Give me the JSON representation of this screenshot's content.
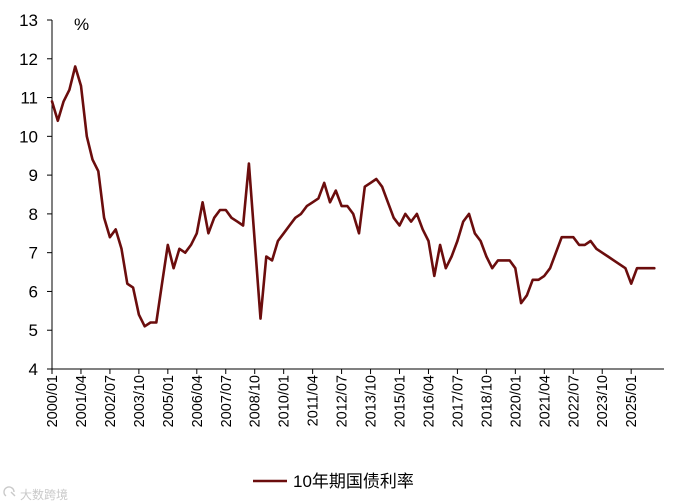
{
  "chart_data": {
    "type": "line",
    "title": "",
    "xlabel": "",
    "ylabel": "%",
    "ylim": [
      4,
      13
    ],
    "yticks": [
      4,
      5,
      6,
      7,
      8,
      9,
      10,
      11,
      12,
      13
    ],
    "xlim": [
      "2000/01",
      "2026/06"
    ],
    "xtick_labels": [
      "2000/01",
      "2001/04",
      "2002/07",
      "2003/10",
      "2005/01",
      "2006/04",
      "2007/07",
      "2008/10",
      "2010/01",
      "2011/04",
      "2012/07",
      "2013/10",
      "2015/01",
      "2016/04",
      "2017/07",
      "2018/10",
      "2020/01",
      "2021/04",
      "2022/07",
      "2023/10",
      "2025/01"
    ],
    "grid": false,
    "legend": "bottom-center",
    "line_color": "#6b0d0d",
    "series": [
      {
        "name": "10年期国债利率",
        "x": [
          "2000/01",
          "2000/04",
          "2000/07",
          "2000/10",
          "2001/01",
          "2001/04",
          "2001/07",
          "2001/10",
          "2002/01",
          "2002/04",
          "2002/07",
          "2002/10",
          "2003/01",
          "2003/04",
          "2003/07",
          "2003/10",
          "2004/01",
          "2004/04",
          "2004/07",
          "2004/10",
          "2005/01",
          "2005/04",
          "2005/07",
          "2005/10",
          "2006/01",
          "2006/04",
          "2006/07",
          "2006/10",
          "2007/01",
          "2007/04",
          "2007/07",
          "2007/10",
          "2008/01",
          "2008/04",
          "2008/07",
          "2008/10",
          "2009/01",
          "2009/04",
          "2009/07",
          "2009/10",
          "2010/01",
          "2010/04",
          "2010/07",
          "2010/10",
          "2011/01",
          "2011/04",
          "2011/07",
          "2011/10",
          "2012/01",
          "2012/04",
          "2012/07",
          "2012/10",
          "2013/01",
          "2013/04",
          "2013/07",
          "2013/10",
          "2014/01",
          "2014/04",
          "2014/07",
          "2014/10",
          "2015/01",
          "2015/04",
          "2015/07",
          "2015/10",
          "2016/01",
          "2016/04",
          "2016/07",
          "2016/10",
          "2017/01",
          "2017/04",
          "2017/07",
          "2017/10",
          "2018/01",
          "2018/04",
          "2018/07",
          "2018/10",
          "2019/01",
          "2019/04",
          "2019/07",
          "2019/10",
          "2020/01",
          "2020/04",
          "2020/07",
          "2020/10",
          "2021/01",
          "2021/04",
          "2021/07",
          "2021/10",
          "2022/01",
          "2022/04",
          "2022/07",
          "2022/10",
          "2023/01",
          "2023/04",
          "2023/07",
          "2023/10",
          "2024/01",
          "2024/04",
          "2024/07",
          "2024/10",
          "2025/01",
          "2025/04",
          "2025/07",
          "2025/10",
          "2026/01"
        ],
        "values": [
          10.9,
          10.4,
          10.9,
          11.2,
          11.8,
          11.3,
          10.0,
          9.4,
          9.1,
          7.9,
          7.4,
          7.6,
          7.1,
          6.2,
          6.1,
          5.4,
          5.1,
          5.2,
          5.2,
          6.2,
          7.2,
          6.6,
          7.1,
          7.0,
          7.2,
          7.5,
          8.3,
          7.5,
          7.9,
          8.1,
          8.1,
          7.9,
          7.8,
          7.7,
          9.3,
          7.3,
          5.3,
          6.9,
          6.8,
          7.3,
          7.5,
          7.7,
          7.9,
          8.0,
          8.2,
          8.3,
          8.4,
          8.8,
          8.3,
          8.6,
          8.2,
          8.2,
          8.0,
          7.5,
          8.7,
          8.8,
          8.9,
          8.7,
          8.3,
          7.9,
          7.7,
          8.0,
          7.8,
          8.0,
          7.6,
          7.3,
          6.4,
          7.2,
          6.6,
          6.9,
          7.3,
          7.8,
          8.0,
          7.5,
          7.3,
          6.9,
          6.6,
          6.8,
          6.8,
          6.8,
          6.6,
          5.7,
          5.9,
          6.3,
          6.3,
          6.4,
          6.6,
          7.0,
          7.4,
          7.4,
          7.4,
          7.2,
          7.2,
          7.3,
          7.1,
          7.0,
          6.9,
          6.8,
          6.7,
          6.6,
          6.2,
          6.6,
          6.6,
          6.6,
          6.6
        ]
      }
    ]
  },
  "watermark": {
    "text": "大数跨境",
    "icon": "brand-logo-icon"
  }
}
